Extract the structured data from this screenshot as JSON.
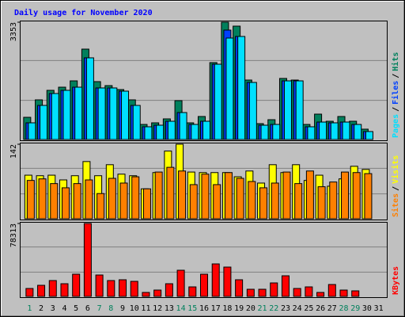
{
  "chart_data": [
    {
      "type": "bar",
      "title": "Daily usage for November 2020",
      "ylim": [
        0,
        3353
      ],
      "yticks": [
        3353
      ],
      "legend_separator": "/",
      "series": [
        {
          "name": "Hits",
          "color": "#00805c",
          "values": [
            634,
            1133,
            1405,
            1495,
            1676,
            2583,
            1654,
            1540,
            1427,
            1133,
            430,
            476,
            589,
            1110,
            476,
            657,
            2198,
            3353,
            3240,
            1699,
            453,
            566,
            1745,
            1699,
            430,
            725,
            521,
            657,
            521,
            295,
            0
          ]
        },
        {
          "name": "Files",
          "color": "#0040ff",
          "values": [
            476,
            974,
            1314,
            1405,
            1495,
            2334,
            1473,
            1473,
            1382,
            974,
            363,
            408,
            521,
            770,
            430,
            521,
            2152,
            3127,
            2945,
            1631,
            408,
            430,
            1676,
            1676,
            363,
            498,
            476,
            498,
            430,
            227,
            0
          ]
        },
        {
          "name": "Pages",
          "color": "#00e0ff",
          "values": [
            476,
            974,
            1314,
            1405,
            1495,
            2334,
            1473,
            1473,
            1382,
            974,
            363,
            408,
            521,
            770,
            430,
            521,
            2152,
            2900,
            2945,
            1631,
            408,
            430,
            1676,
            1676,
            363,
            498,
            476,
            498,
            430,
            227,
            0
          ]
        }
      ]
    },
    {
      "type": "bar",
      "ylim": [
        0,
        142
      ],
      "yticks": [
        142
      ],
      "legend_separator": "/",
      "series": [
        {
          "name": "Visits",
          "color": "#ffff00",
          "values": [
            83,
            82,
            83,
            74,
            82,
            109,
            82,
            103,
            85,
            82,
            57,
            88,
            129,
            142,
            89,
            88,
            88,
            88,
            80,
            91,
            68,
            103,
            88,
            103,
            73,
            83,
            62,
            76,
            100,
            94,
            0
          ]
        },
        {
          "name": "Sites",
          "color": "#ff8000",
          "values": [
            73,
            76,
            67,
            59,
            67,
            74,
            48,
            77,
            68,
            80,
            57,
            89,
            98,
            91,
            65,
            85,
            65,
            88,
            77,
            71,
            59,
            68,
            89,
            67,
            91,
            61,
            70,
            89,
            88,
            86,
            0
          ]
        }
      ]
    },
    {
      "type": "bar",
      "ylim": [
        0,
        78313
      ],
      "yticks": [
        78313
      ],
      "categories": [
        "1",
        "2",
        "3",
        "4",
        "5",
        "6",
        "7",
        "8",
        "9",
        "10",
        "11",
        "12",
        "13",
        "14",
        "15",
        "16",
        "17",
        "18",
        "19",
        "20",
        "21",
        "22",
        "23",
        "24",
        "25",
        "26",
        "27",
        "28",
        "29",
        "30",
        "31"
      ],
      "category_colors": [
        "#00805c",
        "#000000",
        "#000000",
        "#000000",
        "#000000",
        "#000000",
        "#00805c",
        "#00805c",
        "#000000",
        "#000000",
        "#000000",
        "#000000",
        "#000000",
        "#00805c",
        "#00805c",
        "#000000",
        "#000000",
        "#000000",
        "#000000",
        "#000000",
        "#00805c",
        "#00805c",
        "#000000",
        "#000000",
        "#000000",
        "#000000",
        "#000000",
        "#00805c",
        "#00805c",
        "#000000",
        "#000000"
      ],
      "series": [
        {
          "name": "KBytes",
          "color": "#ff0000",
          "values": [
            8512,
            11917,
            17025,
            13620,
            23835,
            78313,
            22984,
            17025,
            17876,
            16174,
            4256,
            6810,
            13620,
            28091,
            10215,
            23835,
            34902,
            31497,
            17876,
            7661,
            7661,
            14471,
            22133,
            8512,
            10215,
            4256,
            12768,
            6810,
            5959,
            0,
            0
          ]
        }
      ]
    }
  ]
}
